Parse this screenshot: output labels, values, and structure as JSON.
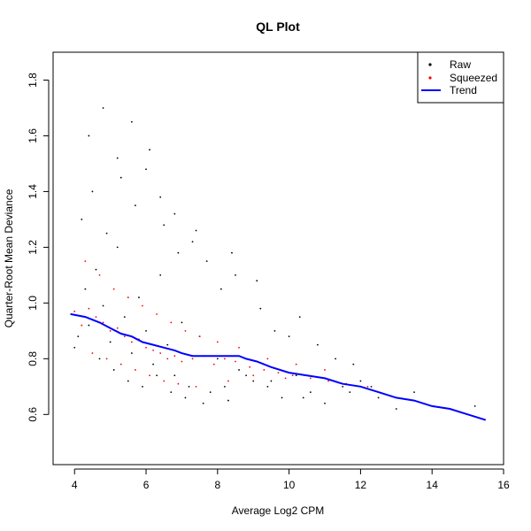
{
  "chart_data": {
    "type": "scatter",
    "title": "QL Plot",
    "xlabel": "Average Log2 CPM",
    "ylabel": "Quarter-Root Mean Deviance",
    "xlim": [
      3.4,
      16.0
    ],
    "ylim": [
      0.42,
      1.9
    ],
    "x_ticks": [
      4,
      6,
      8,
      10,
      12,
      14,
      16
    ],
    "y_ticks": [
      0.6,
      0.8,
      1.0,
      1.2,
      1.4,
      1.6,
      1.8
    ],
    "x_tick_labels": [
      "4",
      "6",
      "8",
      "10",
      "12",
      "14",
      "16"
    ],
    "y_tick_labels": [
      "0.6",
      "0.8",
      "1.0",
      "1.2",
      "1.4",
      "1.6",
      "1.8"
    ],
    "legend_position": "top-right",
    "legend": [
      {
        "label": "Raw",
        "symbol": "point",
        "color": "#000000"
      },
      {
        "label": "Squeezed",
        "symbol": "point",
        "color": "#ff0000"
      },
      {
        "label": "Trend",
        "symbol": "line",
        "color": "#0000ff"
      }
    ],
    "series": [
      {
        "name": "Raw",
        "color": "#000000",
        "x": [
          3.9,
          4.1,
          4.3,
          4.4,
          4.6,
          4.8,
          5.0,
          5.2,
          5.4,
          5.6,
          5.8,
          6.0,
          6.2,
          6.4,
          6.6,
          6.8,
          7.0,
          7.2,
          7.5,
          7.8,
          8.0,
          8.3,
          8.6,
          9.0,
          9.4,
          9.8,
          10.2,
          10.6,
          11.0,
          11.5,
          12.0,
          12.5,
          13.0,
          13.5,
          4.2,
          4.5,
          4.9,
          5.3,
          5.7,
          6.1,
          6.5,
          6.9,
          7.3,
          7.7,
          8.1,
          8.5,
          9.2,
          9.6,
          10.0,
          10.8,
          11.3,
          11.8,
          4.0,
          4.7,
          5.1,
          5.5,
          5.9,
          6.3,
          6.7,
          7.1,
          7.6,
          8.2,
          8.8,
          9.5,
          10.4,
          11.7,
          12.3,
          15.2,
          4.4,
          4.8,
          5.2,
          5.6,
          6.0,
          6.4,
          6.8,
          7.4,
          8.4,
          9.1,
          10.3
        ],
        "y": [
          0.96,
          0.88,
          1.05,
          0.92,
          1.12,
          0.99,
          0.86,
          1.2,
          0.95,
          0.82,
          1.02,
          0.9,
          0.78,
          1.1,
          0.85,
          0.74,
          0.93,
          0.7,
          0.88,
          0.68,
          0.8,
          0.65,
          0.76,
          0.72,
          0.7,
          0.66,
          0.74,
          0.68,
          0.64,
          0.7,
          0.72,
          0.66,
          0.62,
          0.68,
          1.3,
          1.4,
          1.25,
          1.45,
          1.35,
          1.55,
          1.28,
          1.18,
          1.22,
          1.15,
          1.05,
          1.1,
          0.98,
          0.9,
          0.88,
          0.85,
          0.8,
          0.78,
          0.84,
          0.8,
          0.76,
          0.72,
          0.7,
          0.74,
          0.68,
          0.66,
          0.64,
          0.7,
          0.74,
          0.72,
          0.66,
          0.68,
          0.7,
          0.63,
          1.6,
          1.7,
          1.52,
          1.65,
          1.48,
          1.38,
          1.32,
          1.26,
          1.18,
          1.08,
          0.95
        ]
      },
      {
        "name": "Squeezed",
        "color": "#ff0000",
        "x": [
          4.0,
          4.2,
          4.4,
          4.6,
          4.8,
          5.0,
          5.2,
          5.4,
          5.6,
          5.8,
          6.0,
          6.2,
          6.4,
          6.6,
          6.8,
          7.0,
          7.3,
          7.6,
          7.9,
          8.2,
          8.5,
          8.9,
          9.3,
          9.7,
          10.1,
          10.6,
          11.1,
          11.6,
          12.2,
          4.3,
          4.7,
          5.1,
          5.5,
          5.9,
          6.3,
          6.7,
          7.1,
          7.5,
          8.0,
          8.6,
          9.4,
          10.2,
          11.0,
          4.5,
          4.9,
          5.3,
          5.7,
          6.1,
          6.5,
          6.9,
          7.4,
          8.3,
          9.0,
          9.9
        ],
        "y": [
          0.97,
          0.92,
          0.98,
          0.95,
          0.93,
          0.9,
          0.91,
          0.88,
          0.86,
          0.87,
          0.84,
          0.83,
          0.82,
          0.8,
          0.81,
          0.79,
          0.8,
          0.81,
          0.78,
          0.8,
          0.79,
          0.77,
          0.76,
          0.75,
          0.74,
          0.73,
          0.72,
          0.71,
          0.7,
          1.15,
          1.1,
          1.05,
          1.02,
          0.99,
          0.96,
          0.93,
          0.9,
          0.88,
          0.86,
          0.84,
          0.8,
          0.78,
          0.76,
          0.82,
          0.8,
          0.78,
          0.76,
          0.74,
          0.72,
          0.71,
          0.7,
          0.72,
          0.74,
          0.73
        ]
      },
      {
        "name": "Trend",
        "color": "#0000ff",
        "x": [
          3.9,
          4.3,
          4.7,
          5.0,
          5.3,
          5.6,
          5.9,
          6.2,
          6.5,
          6.8,
          7.0,
          7.3,
          7.6,
          8.0,
          8.3,
          8.6,
          8.8,
          9.1,
          9.5,
          10.0,
          10.5,
          11.0,
          11.5,
          12.0,
          12.5,
          13.0,
          13.5,
          14.0,
          14.5,
          15.0,
          15.5
        ],
        "y": [
          0.96,
          0.95,
          0.93,
          0.91,
          0.89,
          0.88,
          0.86,
          0.85,
          0.84,
          0.83,
          0.82,
          0.81,
          0.81,
          0.81,
          0.81,
          0.81,
          0.8,
          0.79,
          0.77,
          0.75,
          0.74,
          0.73,
          0.71,
          0.7,
          0.68,
          0.66,
          0.65,
          0.63,
          0.62,
          0.6,
          0.58
        ]
      }
    ]
  }
}
